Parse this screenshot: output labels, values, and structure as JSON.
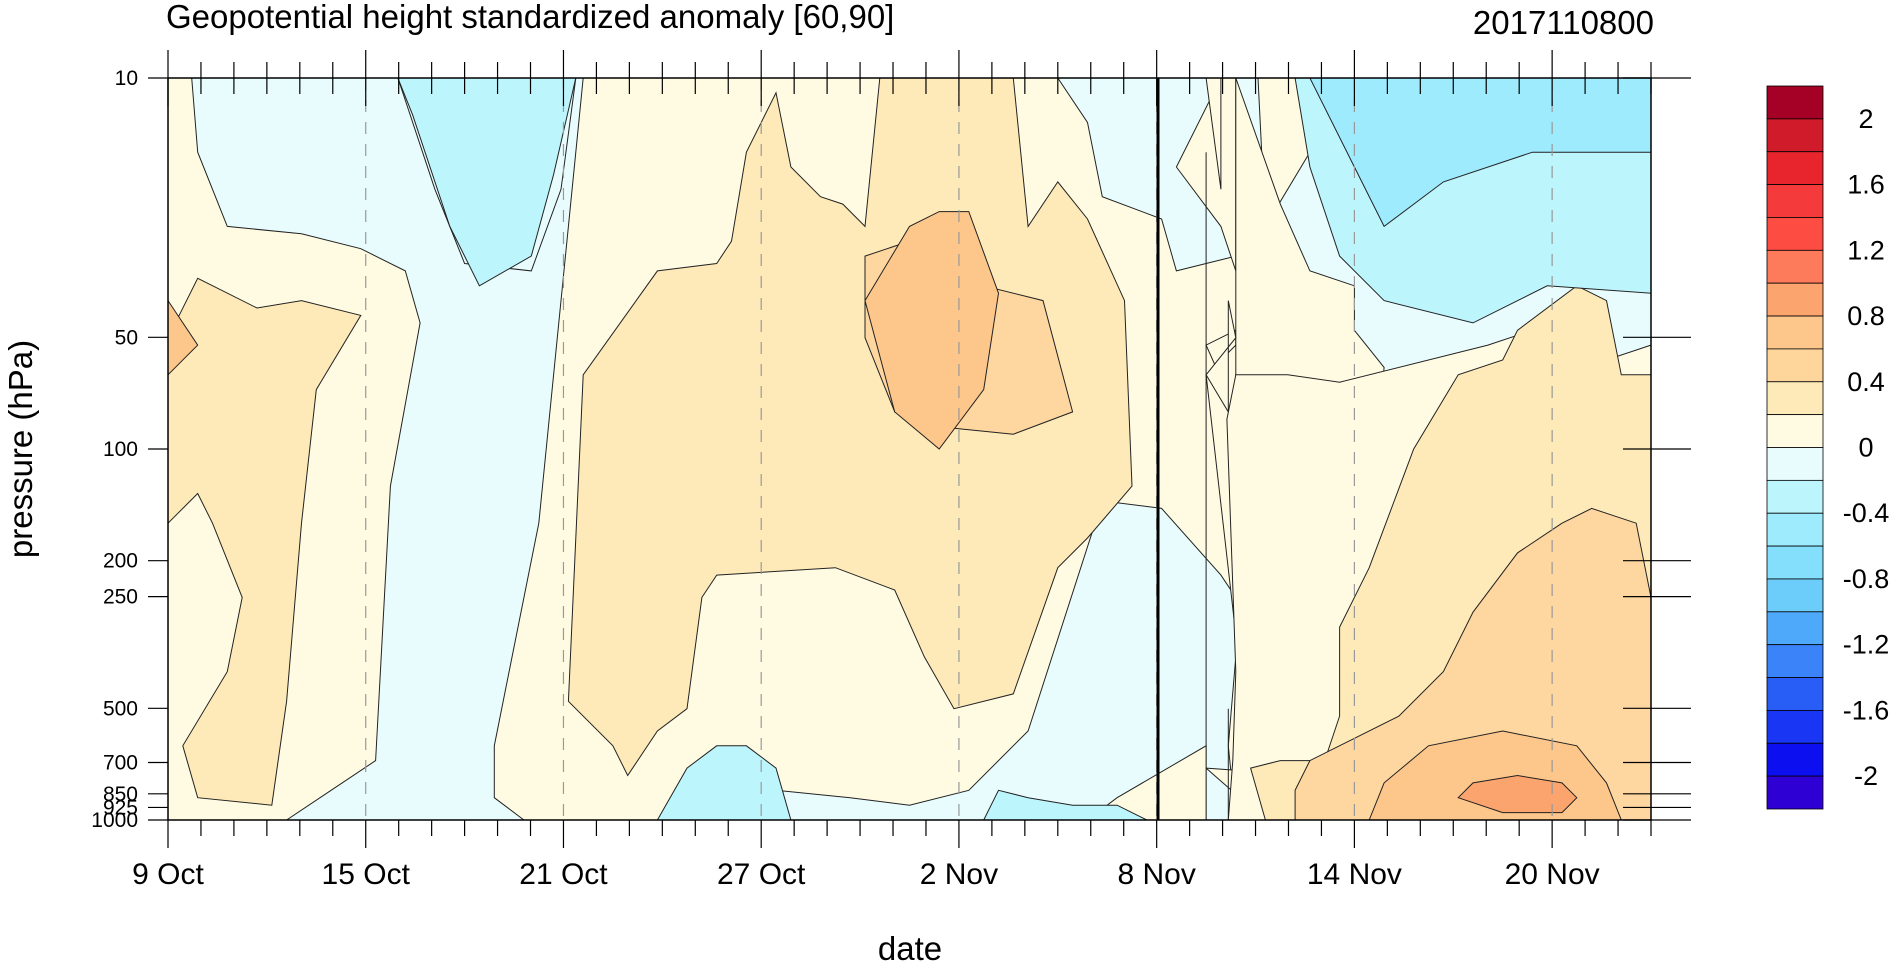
{
  "chart_data": {
    "type": "heatmap",
    "title": "Geopotential height standardized anomaly [60,90]",
    "timestamp": "2017110800",
    "xlabel": "date",
    "ylabel": "pressure (hPa)",
    "x_tick_labels": [
      "9 Oct",
      "15 Oct",
      "21 Oct",
      "27 Oct",
      "2 Nov",
      "8 Nov",
      "14 Nov",
      "20 Nov"
    ],
    "y_scale": "log",
    "y_reversed": true,
    "y_levels": [
      10,
      50,
      100,
      200,
      250,
      500,
      700,
      850,
      925,
      1000
    ],
    "y_tick_labels": [
      "10",
      "50",
      "100",
      "200",
      "250",
      "500",
      "700",
      "850",
      "925",
      "1000"
    ],
    "ylim": [
      1000,
      10
    ],
    "x_range_days": [
      0,
      45
    ],
    "analysis_date": "8 Nov",
    "grid": "vertical dashed lines at labeled dates",
    "legend": "right colorbar",
    "colorbar": {
      "labels": [
        "2",
        "1.6",
        "1.2",
        "0.8",
        "0.4",
        "0",
        "-0.4",
        "-0.8",
        "-1.2",
        "-1.6",
        "-2"
      ],
      "levels": [
        2.2,
        2.0,
        1.8,
        1.6,
        1.4,
        1.2,
        1.0,
        0.8,
        0.6,
        0.4,
        0.2,
        0.0,
        -0.2,
        -0.4,
        -0.6,
        -0.8,
        -1.0,
        -1.2,
        -1.4,
        -1.6,
        -1.8,
        -2.0,
        -2.2
      ],
      "colors": [
        "#a50026",
        "#d01b2a",
        "#e8252d",
        "#f43a3a",
        "#fd4d43",
        "#fd7a5a",
        "#fca46e",
        "#fdc68b",
        "#fed59a",
        "#feeab8",
        "#fffbe3",
        "#e8fcfe",
        "#bdf5fd",
        "#9eebfd",
        "#84dffc",
        "#6ccdfb",
        "#4fa9fa",
        "#3a83f8",
        "#285ef6",
        "#1836f3",
        "#0c0ff0",
        "#2f00d4"
      ]
    },
    "regions": [
      {
        "name": "anomaly-0-to-0.2",
        "color": "#fffbe3"
      },
      {
        "name": "anomaly-0.2-to-0.4",
        "color": "#feeab8"
      },
      {
        "name": "anomaly-0.4-to-0.6",
        "color": "#fdd6a0"
      },
      {
        "name": "anomaly-0.6-to-0.8",
        "color": "#fdc68b"
      },
      {
        "name": "anomaly-0.8-to-1.0",
        "color": "#fca46e"
      },
      {
        "name": "anomaly-minus-0.2-to-0",
        "color": "#e8fcfe"
      },
      {
        "name": "anomaly-minus-0.4-to-minus-0.2",
        "color": "#bdf5fd"
      },
      {
        "name": "anomaly-minus-0.6-to-minus-0.4",
        "color": "#9eebfd"
      }
    ]
  }
}
